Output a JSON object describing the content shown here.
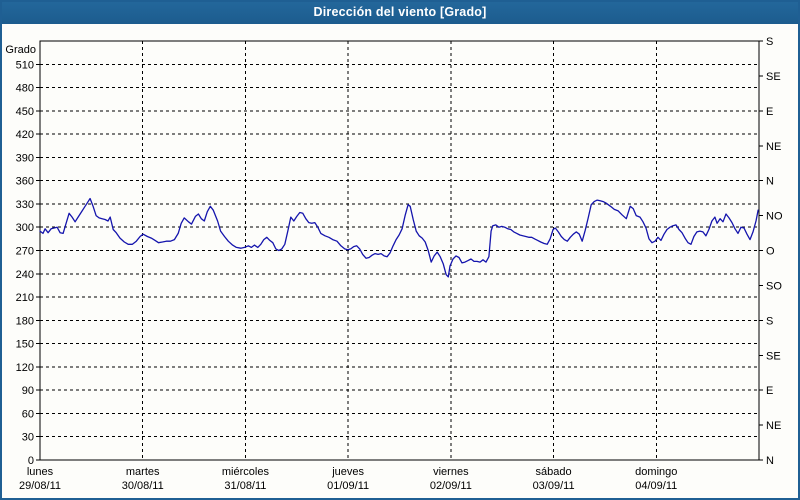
{
  "window": {
    "title": "Dirección del viento [Grado]"
  },
  "colors": {
    "titlebar_bg": "#1f6396",
    "frame_border": "#1f5f93",
    "plot_background": "#fdfdfa",
    "plot_border": "#000000",
    "grid": "#000000",
    "line": "#1515ad",
    "title_text": "#ffffff"
  },
  "chart_data": {
    "type": "line",
    "title": "Dirección del viento [Grado]",
    "y_axis_title": "Grado",
    "ylim": [
      0,
      540
    ],
    "y_left_ticks": [
      0,
      30,
      60,
      90,
      120,
      150,
      180,
      210,
      240,
      270,
      300,
      330,
      360,
      390,
      420,
      450,
      480,
      510
    ],
    "y_right_ticks": [
      {
        "value": 540,
        "label": "S"
      },
      {
        "value": 495,
        "label": "SE"
      },
      {
        "value": 450,
        "label": "E"
      },
      {
        "value": 405,
        "label": "NE"
      },
      {
        "value": 360,
        "label": "N"
      },
      {
        "value": 315,
        "label": "NO"
      },
      {
        "value": 270,
        "label": "O"
      },
      {
        "value": 225,
        "label": "SO"
      },
      {
        "value": 180,
        "label": "S"
      },
      {
        "value": 135,
        "label": "SE"
      },
      {
        "value": 90,
        "label": "E"
      },
      {
        "value": 45,
        "label": "NE"
      },
      {
        "value": 0,
        "label": "N"
      }
    ],
    "xlim_hours": [
      0,
      168
    ],
    "hours_per_day": 24,
    "x_days": [
      {
        "name": "lunes",
        "date": "29/08/11"
      },
      {
        "name": "martes",
        "date": "30/08/11"
      },
      {
        "name": "miércoles",
        "date": "31/08/11"
      },
      {
        "name": "jueves",
        "date": "01/09/11"
      },
      {
        "name": "viernes",
        "date": "02/09/11"
      },
      {
        "name": "sábado",
        "date": "03/09/11"
      },
      {
        "name": "domingo",
        "date": "04/09/11"
      }
    ],
    "grid": "dashed",
    "legend_position": "none",
    "series": [
      {
        "name": "Dirección del viento [Grado]",
        "color": "#1515ad",
        "x_hours": [
          0,
          0.7,
          1.2,
          1.9,
          2.6,
          3.3,
          4.0,
          4.7,
          5.4,
          6.1,
          6.8,
          7.5,
          8.2,
          8.9,
          9.6,
          10.3,
          11.0,
          11.7,
          12.4,
          13.1,
          13.8,
          14.5,
          15.2,
          15.9,
          16.4,
          17.1,
          17.8,
          18.7,
          19.7,
          20.6,
          21.6,
          22.5,
          23.4,
          24.1,
          25.1,
          26.0,
          26.9,
          27.7,
          28.6,
          29.5,
          30.5,
          31.4,
          32.3,
          33.0,
          33.7,
          34.7,
          35.4,
          36.3,
          37.0,
          37.7,
          38.4,
          39.1,
          39.8,
          40.5,
          41.5,
          42.2,
          43.1,
          44.0,
          45.0,
          45.9,
          46.9,
          47.8,
          48.7,
          49.4,
          50.1,
          50.9,
          51.6,
          52.3,
          53.0,
          53.7,
          54.4,
          55.1,
          55.8,
          56.5,
          57.2,
          57.9,
          58.6,
          59.3,
          60.0,
          60.7,
          61.4,
          62.1,
          62.8,
          63.5,
          64.2,
          64.9,
          65.6,
          66.6,
          67.5,
          68.4,
          69.4,
          70.3,
          71.2,
          71.9,
          72.6,
          73.3,
          74.0,
          74.7,
          75.4,
          76.2,
          76.9,
          77.6,
          78.3,
          79.0,
          79.7,
          80.4,
          81.1,
          81.8,
          82.5,
          83.2,
          83.9,
          84.6,
          85.3,
          86.0,
          86.5,
          87.2,
          87.9,
          88.6,
          89.3,
          90.0,
          90.7,
          91.4,
          92.1,
          92.8,
          93.5,
          94.2,
          94.9,
          95.4,
          95.8,
          96.5,
          97.2,
          97.9,
          98.6,
          99.3,
          100.0,
          100.7,
          101.4,
          102.1,
          102.8,
          103.5,
          104.2,
          104.9,
          105.4,
          105.8,
          106.5,
          107.2,
          107.9,
          108.6,
          109.3,
          110.0,
          110.7,
          111.4,
          112.1,
          112.8,
          113.5,
          114.2,
          114.9,
          115.6,
          116.3,
          117.0,
          117.8,
          118.5,
          119.2,
          119.9,
          120.4,
          121.1,
          121.8,
          122.5,
          123.2,
          123.9,
          124.6,
          125.3,
          126.0,
          126.7,
          127.4,
          128.1,
          128.8,
          129.5,
          130.2,
          130.9,
          131.6,
          132.3,
          133.3,
          134.2,
          135.1,
          136.0,
          137.0,
          137.9,
          138.6,
          139.3,
          140.2,
          140.9,
          141.6,
          142.3,
          143.0,
          143.7,
          144.4,
          145.1,
          145.8,
          146.5,
          147.2,
          147.9,
          148.6,
          149.3,
          150.0,
          150.7,
          151.4,
          152.1,
          152.8,
          153.5,
          154.2,
          154.9,
          155.6,
          156.3,
          157.0,
          157.7,
          158.2,
          158.9,
          159.6,
          160.3,
          161.0,
          161.7,
          162.4,
          163.1,
          163.8,
          164.5,
          165.2,
          165.9,
          166.6,
          167.3,
          167.8
        ],
        "values": [
          295,
          292,
          298,
          293,
          298,
          299,
          300,
          293,
          292,
          305,
          318,
          313,
          307,
          313,
          319,
          325,
          331,
          337,
          327,
          315,
          312,
          311,
          310,
          308,
          313,
          297,
          293,
          286,
          281,
          278,
          278,
          282,
          288,
          291,
          288,
          286,
          283,
          280,
          281,
          282,
          282,
          284,
          292,
          305,
          312,
          307,
          304,
          314,
          317,
          311,
          308,
          320,
          327,
          322,
          308,
          295,
          288,
          282,
          277,
          274,
          273,
          274,
          276,
          274,
          277,
          274,
          278,
          284,
          287,
          283,
          280,
          272,
          270,
          272,
          278,
          295,
          313,
          308,
          314,
          319,
          318,
          311,
          306,
          305,
          306,
          300,
          292,
          289,
          287,
          284,
          282,
          276,
          272,
          271,
          272,
          275,
          276,
          272,
          265,
          260,
          261,
          264,
          266,
          265,
          266,
          263,
          262,
          267,
          276,
          284,
          290,
          298,
          315,
          329,
          327,
          310,
          295,
          289,
          286,
          281,
          270,
          255,
          263,
          268,
          262,
          253,
          239,
          236,
          250,
          259,
          263,
          261,
          254,
          255,
          257,
          259,
          256,
          256,
          255,
          258,
          255,
          262,
          295,
          302,
          303,
          300,
          301,
          300,
          298,
          297,
          294,
          292,
          290,
          289,
          288,
          287,
          287,
          285,
          283,
          281,
          279,
          278,
          285,
          297,
          299,
          294,
          288,
          284,
          282,
          287,
          291,
          294,
          291,
          282,
          296,
          312,
          329,
          333,
          335,
          334,
          333,
          331,
          327,
          323,
          321,
          316,
          311,
          327,
          324,
          315,
          313,
          307,
          299,
          285,
          280,
          282,
          287,
          283,
          291,
          297,
          300,
          302,
          303,
          297,
          293,
          286,
          280,
          278,
          288,
          294,
          295,
          294,
          289,
          297,
          308,
          313,
          305,
          311,
          307,
          317,
          312,
          306,
          298,
          292,
          300,
          299,
          291,
          284,
          294,
          308,
          322
        ]
      }
    ]
  }
}
